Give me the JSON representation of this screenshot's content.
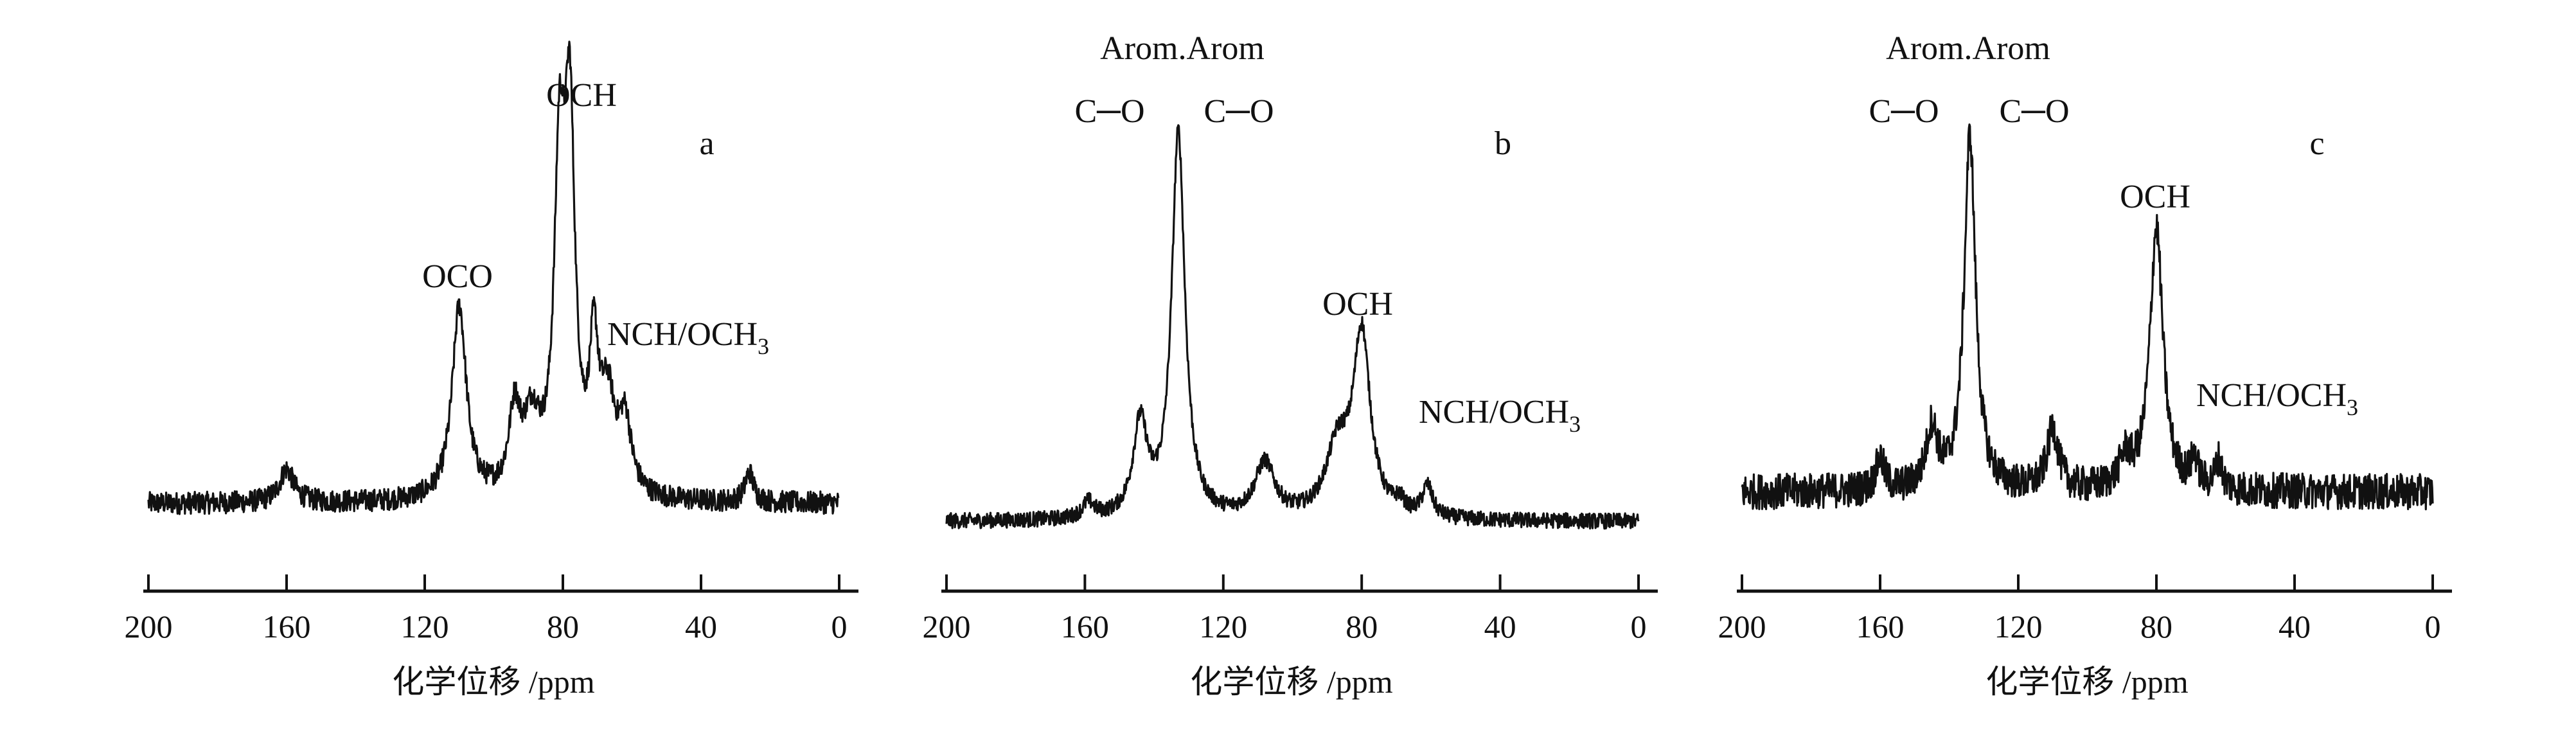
{
  "chart_data": [
    {
      "type": "line",
      "panel_label": "a",
      "xlabel": "化学位移 /ppm",
      "xlim": [
        200,
        0
      ],
      "x_reversed": true,
      "xticks": [
        "200",
        "160",
        "120",
        "80",
        "40",
        "0"
      ],
      "y_axis_shown": false,
      "grid": false,
      "noise": 3,
      "peaks": [
        {
          "ppm": 160,
          "intensity": 9,
          "width": 2.5
        },
        {
          "ppm": 110,
          "intensity": 52,
          "width": 2.5
        },
        {
          "ppm": 94,
          "intensity": 21,
          "width": 2
        },
        {
          "ppm": 89,
          "intensity": 19,
          "width": 3
        },
        {
          "ppm": 81,
          "intensity": 82,
          "width": 1.8
        },
        {
          "ppm": 78,
          "intensity": 95,
          "width": 1.8
        },
        {
          "ppm": 71,
          "intensity": 36,
          "width": 1.6
        },
        {
          "ppm": 67,
          "intensity": 24,
          "width": 2.5
        },
        {
          "ppm": 62,
          "intensity": 19,
          "width": 2.2
        },
        {
          "ppm": 26,
          "intensity": 8,
          "width": 1.5
        }
      ],
      "annotations": [
        {
          "text": "OCH",
          "sub": ""
        },
        {
          "text": "OCO",
          "sub": ""
        },
        {
          "text": "NCH/OCH",
          "sub": "3"
        }
      ]
    },
    {
      "type": "line",
      "panel_label": "b",
      "xlabel": "化学位移 /ppm",
      "xlim": [
        200,
        0
      ],
      "x_reversed": true,
      "xticks": [
        "200",
        "160",
        "120",
        "80",
        "40",
        "0"
      ],
      "y_axis_shown": false,
      "grid": false,
      "noise": 2,
      "peaks": [
        {
          "ppm": 159,
          "intensity": 4,
          "width": 2
        },
        {
          "ppm": 144,
          "intensity": 24,
          "width": 2.5
        },
        {
          "ppm": 133,
          "intensity": 100,
          "width": 2.3
        },
        {
          "ppm": 108,
          "intensity": 14,
          "width": 3.5
        },
        {
          "ppm": 87,
          "intensity": 17,
          "width": 4
        },
        {
          "ppm": 80,
          "intensity": 47,
          "width": 3
        },
        {
          "ppm": 69,
          "intensity": 3,
          "width": 1.5
        },
        {
          "ppm": 61,
          "intensity": 8,
          "width": 1.8
        }
      ],
      "annotations": [
        {
          "text": "Arom.Arom",
          "sub": ""
        },
        {
          "text": "C─O",
          "sub": ""
        },
        {
          "text": "C─O",
          "sub": ""
        },
        {
          "text": "OCH",
          "sub": ""
        },
        {
          "text": "NCH/OCH",
          "sub": "3"
        }
      ]
    },
    {
      "type": "line",
      "panel_label": "c",
      "xlabel": "化学位移 /ppm",
      "xlim": [
        200,
        0
      ],
      "x_reversed": true,
      "xticks": [
        "200",
        "160",
        "120",
        "80",
        "40",
        "0"
      ],
      "y_axis_shown": false,
      "grid": false,
      "noise": 5,
      "peaks": [
        {
          "ppm": 160,
          "intensity": 9,
          "width": 1.5
        },
        {
          "ppm": 145,
          "intensity": 17,
          "width": 2
        },
        {
          "ppm": 134,
          "intensity": 100,
          "width": 2
        },
        {
          "ppm": 110,
          "intensity": 17,
          "width": 2
        },
        {
          "ppm": 89,
          "intensity": 8,
          "width": 2
        },
        {
          "ppm": 80,
          "intensity": 74,
          "width": 2.3
        },
        {
          "ppm": 69,
          "intensity": 8,
          "width": 1.2
        },
        {
          "ppm": 62,
          "intensity": 8,
          "width": 1.2
        }
      ],
      "annotations": [
        {
          "text": "Arom.Arom",
          "sub": ""
        },
        {
          "text": "C─O",
          "sub": ""
        },
        {
          "text": "C─O",
          "sub": ""
        },
        {
          "text": "OCH",
          "sub": ""
        },
        {
          "text": "NCH/OCH",
          "sub": "3"
        }
      ]
    }
  ]
}
